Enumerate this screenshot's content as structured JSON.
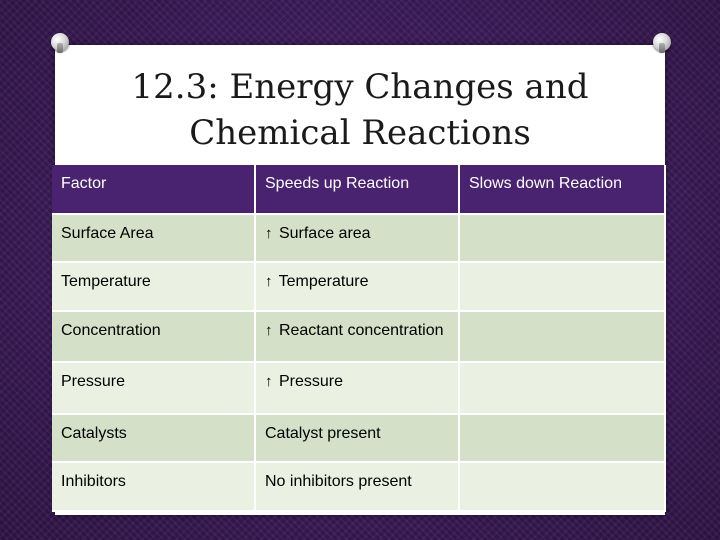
{
  "title_line1": "12.3: Energy Changes and",
  "title_line2": "Chemical Reactions",
  "table": {
    "headers": [
      "Factor",
      "Speeds up Reaction",
      "Slows down Reaction"
    ],
    "rows": [
      {
        "factor": "Surface Area",
        "speeds": "Surface area",
        "speeds_arrow": "↑",
        "slows": ""
      },
      {
        "factor": "Temperature",
        "speeds": "Temperature",
        "speeds_arrow": "↑",
        "slows": ""
      },
      {
        "factor": "Concentration",
        "speeds": "Reactant concentration",
        "speeds_arrow": "↑",
        "slows": ""
      },
      {
        "factor": "Pressure",
        "speeds": "Pressure",
        "speeds_arrow": "↑",
        "slows": ""
      },
      {
        "factor": "Catalysts",
        "speeds": "Catalyst present",
        "speeds_arrow": "",
        "slows": ""
      },
      {
        "factor": "Inhibitors",
        "speeds": "No inhibitors present",
        "speeds_arrow": "",
        "slows": ""
      }
    ]
  },
  "colors": {
    "header_bg": "#4a2370",
    "row_dark": "#d5e0c9",
    "row_light": "#eaf1e3"
  }
}
